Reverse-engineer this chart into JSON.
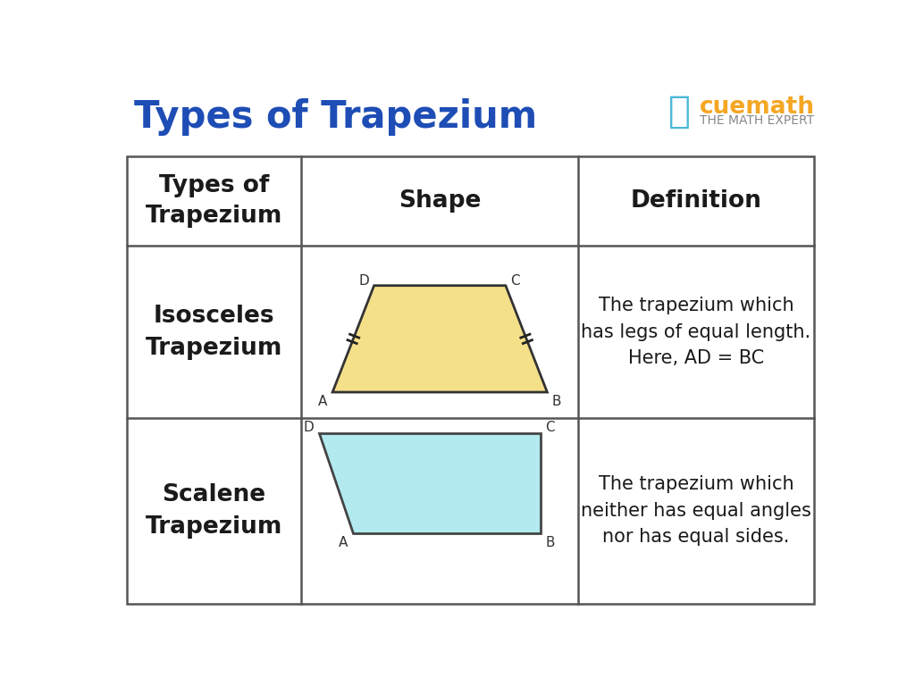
{
  "title": "Types of Trapezium",
  "title_color": "#1e4db5",
  "title_fontsize": 30,
  "bg_color": "#ffffff",
  "table_border_color": "#555555",
  "header_texts": [
    "Types of\nTrapezium",
    "Shape",
    "Definition"
  ],
  "header_fontsize": 19,
  "row1_label": "Isosceles\nTrapezium",
  "row2_label": "Scalene\nTrapezium",
  "row1_def": "The trapezium which\nhas legs of equal length.\nHere, AD = BC",
  "row2_def": "The trapezium which\nneither has equal angles\nnor has equal sides.",
  "row_label_fontsize": 19,
  "def_fontsize": 15,
  "iso_color": "#f5e08a",
  "iso_edge_color": "#333333",
  "scalene_color": "#b2eaf0",
  "scalene_edge_color": "#444444",
  "cuemath_text": "cuemath",
  "cuemath_sub": "THE MATH EXPERT",
  "cuemath_color": "#f5a623",
  "sub_color": "#888888"
}
